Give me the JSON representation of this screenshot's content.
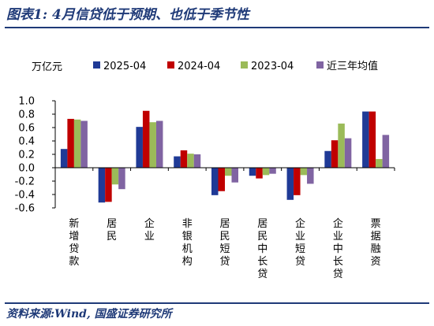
{
  "header": {
    "title": "图表1:  4月信贷低于预期、也低于季节性"
  },
  "footer": {
    "source": "资料来源:Wind, 国盛证券研究所"
  },
  "chart_data": {
    "type": "bar",
    "ylabel": "万亿元",
    "ylim": [
      -0.6,
      1.0
    ],
    "yticks": [
      "1.0",
      "0.8",
      "0.6",
      "0.4",
      "0.2",
      "0.0",
      "-0.2",
      "-0.4",
      "-0.6"
    ],
    "legend_position": "top",
    "grid": false,
    "categories": [
      "新增贷款",
      "居民",
      "企业",
      "非银机构",
      "居民短贷",
      "居民中长贷",
      "企业短贷",
      "企业中长贷",
      "票据融资"
    ],
    "series": [
      {
        "name": "2025-04",
        "color": "#1f3a96",
        "values": [
          0.28,
          -0.52,
          0.61,
          0.17,
          -0.41,
          -0.12,
          -0.48,
          0.25,
          0.84
        ]
      },
      {
        "name": "2024-04",
        "color": "#c00000",
        "values": [
          0.73,
          -0.51,
          0.85,
          0.26,
          -0.35,
          -0.16,
          -0.41,
          0.41,
          0.84
        ]
      },
      {
        "name": "2023-04",
        "color": "#9bbb59",
        "values": [
          0.72,
          -0.25,
          0.68,
          0.21,
          -0.12,
          -0.11,
          -0.11,
          0.66,
          0.13
        ]
      },
      {
        "name": "近三年均值",
        "color": "#8064a2",
        "values": [
          0.7,
          -0.32,
          0.7,
          0.2,
          -0.22,
          -0.09,
          -0.24,
          0.44,
          0.49
        ]
      }
    ]
  }
}
